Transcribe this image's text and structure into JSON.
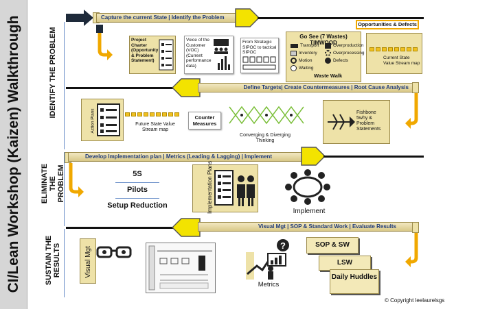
{
  "title": "CI/Lean Workshop (Kaizen) Walkthrough",
  "phases": {
    "identify": "IDENTIFY THE PROBLEM",
    "eliminate": "ELIMINATE THE PROBLEM",
    "sustain": "SUSTAIN THE RESULTS"
  },
  "bands": {
    "b1": "Capture the current State | Identify the Problem",
    "b2": "Define Targets| Create Countermeasures | Root Cause Analysis",
    "b3": "Develop Implementation plan | Metrics (Leading & Lagging) | Implement",
    "b4": "Visual Mgt | SOP & Standard Work | Evaluate Results"
  },
  "row1": {
    "project_charter": "Project Charter (Opportunity & Problem Statement)",
    "voc": "Voice of the Customer (VOC) (Current performance data)",
    "sipoc": "From Strategic SIPOC to tactical SIPOC",
    "go_see_title": "Go See (7 Wastes) TIMWOOD",
    "wastes_left": [
      "Transport",
      "Inventory",
      "Motion",
      "Waiting"
    ],
    "wastes_right": [
      "Overproduction",
      "Overprocessing",
      "Defects"
    ],
    "waste_walk": "Waste Walk",
    "opps_defects": "Opportunities & Defects",
    "current_vsm": "Current State Value Stream map"
  },
  "row2": {
    "action_plans": "Action Plans",
    "future_vsm": "Future State Value Stream map",
    "counter_measures": "Counter Measures",
    "converging": "Converging & Diverging Thinking",
    "fishbone": "Fishbone 5why & Problem Statements"
  },
  "row3": {
    "s5": "5S",
    "pilots": "Pilots",
    "setup": "Setup Reduction",
    "impl_plans": "Implementation Plans",
    "implement": "Implement"
  },
  "row4": {
    "visual_mgt": "Visual Mgt",
    "metrics": "Metrics",
    "sop_sw": "SOP & SW",
    "lsw": "LSW",
    "daily_huddles": "Daily Huddles"
  },
  "copyright": "© Copyright leelaurelsgs",
  "colors": {
    "yellow_arrow": "#f3e300",
    "band": "#e5d69a",
    "tan_box": "#eee2a8",
    "accent_line": "#6a8fc9"
  }
}
